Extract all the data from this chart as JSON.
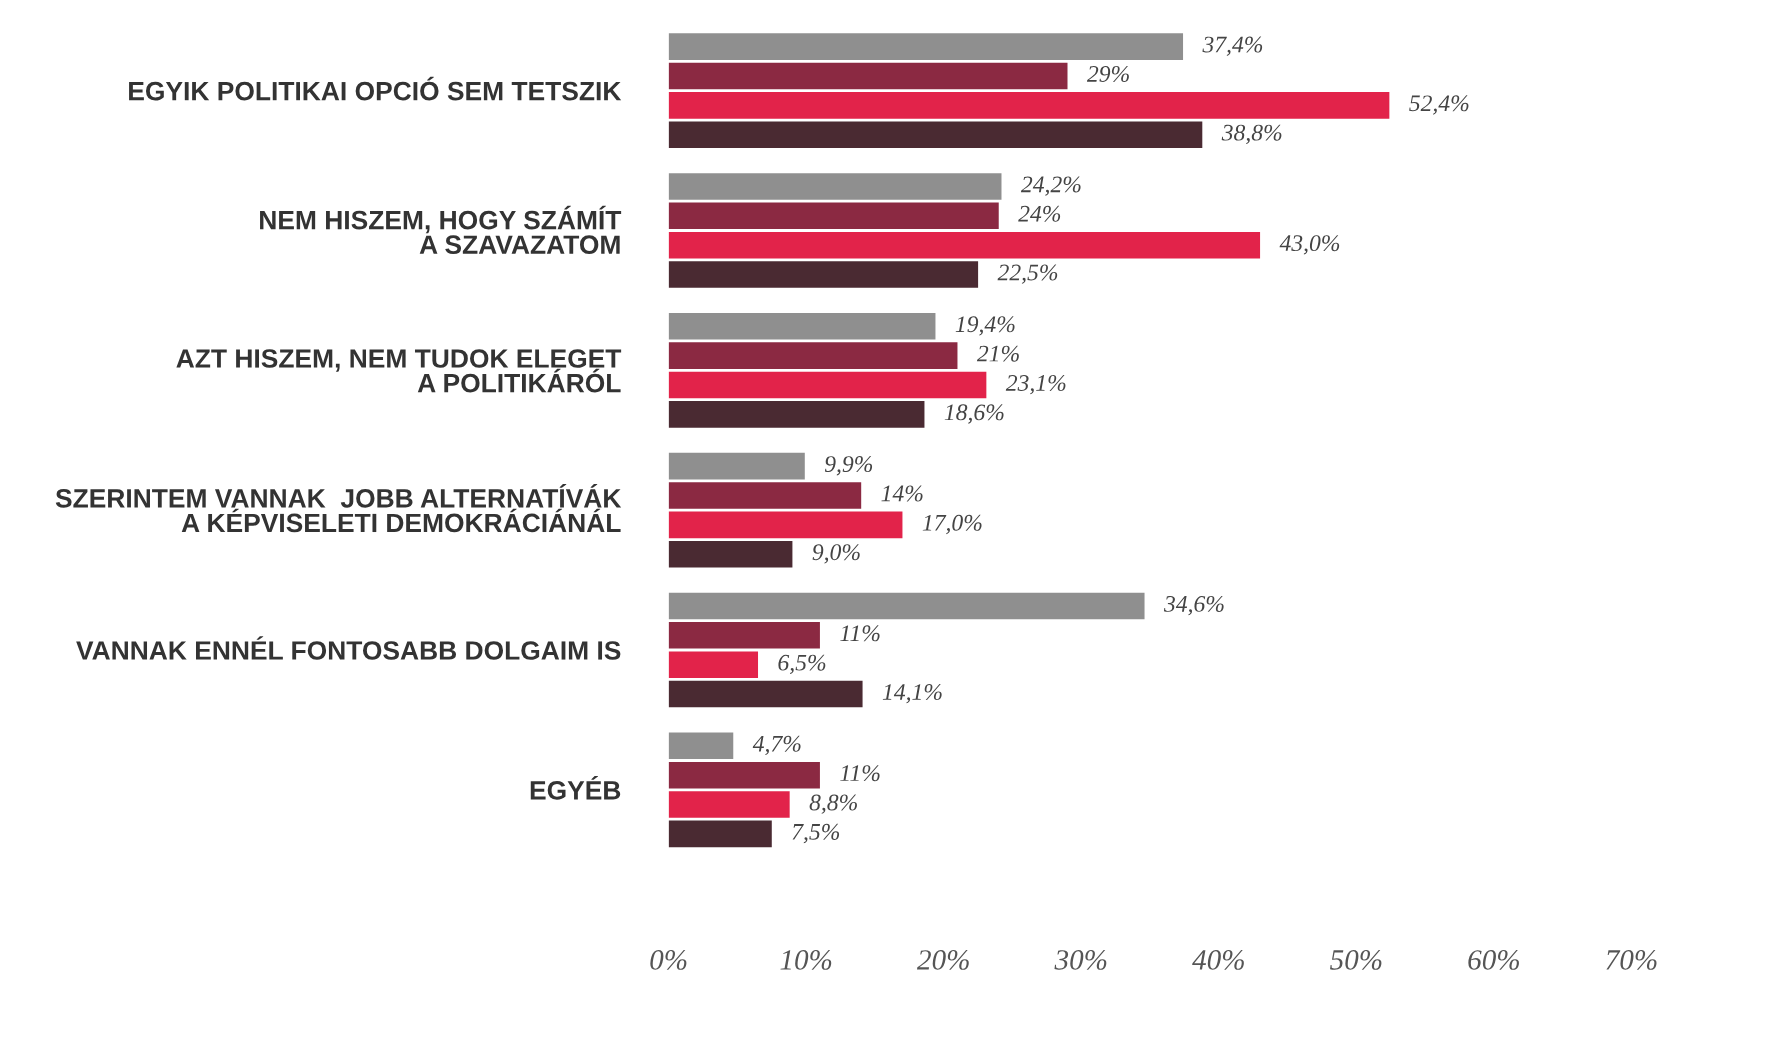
{
  "chart_data": {
    "type": "bar",
    "orientation": "horizontal",
    "categories": [
      "EGYIK POLITIKAI OPCIÓ SEM TETSZIK",
      "NEM HISZEM, HOGY SZÁMÍT\nA SZAVAZATOM",
      "AZT HISZEM, NEM TUDOK ELEGET\nA POLITIKÁRÓL",
      "SZERINTEM VANNAK  JOBB ALTERNATÍVÁK\nA KÉPVISELETI DEMOKRÁCIÁNÁL",
      "VANNAK ENNÉL FONTOSABB DOLGAIM IS",
      "EGYÉB"
    ],
    "series": [
      {
        "color": "#8f8f8f",
        "values": [
          37.4,
          24.2,
          19.4,
          9.9,
          34.6,
          4.7
        ],
        "value_labels": [
          "37,4%",
          "24,2%",
          "19,4%",
          "9,9%",
          "34,6%",
          "4,7%"
        ]
      },
      {
        "color": "#8b2942",
        "values": [
          29,
          24,
          21,
          14,
          11,
          11
        ],
        "value_labels": [
          "29%",
          "24%",
          "21%",
          "14%",
          "11%",
          "11%"
        ]
      },
      {
        "color": "#e2234a",
        "values": [
          52.4,
          43.0,
          23.1,
          17.0,
          6.5,
          8.8
        ],
        "value_labels": [
          "52,4%",
          "43,0%",
          "23,1%",
          "17,0%",
          "6,5%",
          "8,8%"
        ]
      },
      {
        "color": "#4a2a32",
        "values": [
          38.8,
          22.5,
          18.6,
          9.0,
          14.1,
          7.5
        ],
        "value_labels": [
          "38,8%",
          "22,5%",
          "18,6%",
          "9,0%",
          "14,1%",
          "7,5%"
        ]
      }
    ],
    "xlim": [
      0,
      70
    ],
    "xticks": [
      {
        "value": 0,
        "label": "0%"
      },
      {
        "value": 10,
        "label": "10%"
      },
      {
        "value": 20,
        "label": "20%"
      },
      {
        "value": 30,
        "label": "30%"
      },
      {
        "value": 40,
        "label": "40%"
      },
      {
        "value": 50,
        "label": "50%"
      },
      {
        "value": 60,
        "label": "60%"
      },
      {
        "value": 70,
        "label": "70%"
      }
    ],
    "grid": false,
    "legend": false
  }
}
